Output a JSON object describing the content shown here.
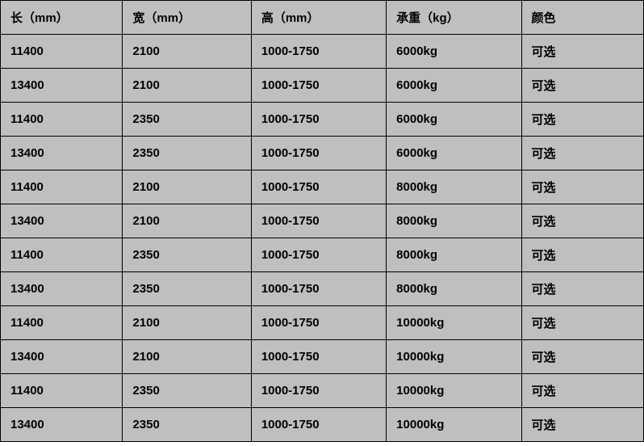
{
  "table": {
    "background_color": "#bfbfbf",
    "border_color": "#000000",
    "text_color": "#000000",
    "font_size": 15,
    "font_weight": "bold",
    "columns": [
      {
        "key": "length",
        "label": "长（mm）",
        "width_pct": 19
      },
      {
        "key": "width",
        "label": "宽（mm）",
        "width_pct": 20
      },
      {
        "key": "height",
        "label": "高（mm）",
        "width_pct": 21
      },
      {
        "key": "weight",
        "label": "承重（kg）",
        "width_pct": 21
      },
      {
        "key": "color",
        "label": "颜色",
        "width_pct": 19
      }
    ],
    "rows": [
      {
        "length": "11400",
        "width": "2100",
        "height": "1000-1750",
        "weight": "6000kg",
        "color": "可选"
      },
      {
        "length": "13400",
        "width": "2100",
        "height": "1000-1750",
        "weight": "6000kg",
        "color": "可选"
      },
      {
        "length": "11400",
        "width": "2350",
        "height": "1000-1750",
        "weight": "6000kg",
        "color": "可选"
      },
      {
        "length": "13400",
        "width": "2350",
        "height": "1000-1750",
        "weight": "6000kg",
        "color": "可选"
      },
      {
        "length": "11400",
        "width": "2100",
        "height": "1000-1750",
        "weight": "8000kg",
        "color": "可选"
      },
      {
        "length": "13400",
        "width": "2100",
        "height": "1000-1750",
        "weight": "8000kg",
        "color": "可选"
      },
      {
        "length": "11400",
        "width": "2350",
        "height": "1000-1750",
        "weight": "8000kg",
        "color": "可选"
      },
      {
        "length": "13400",
        "width": "2350",
        "height": "1000-1750",
        "weight": "8000kg",
        "color": "可选"
      },
      {
        "length": "11400",
        "width": "2100",
        "height": "1000-1750",
        "weight": "10000kg",
        "color": "可选"
      },
      {
        "length": "13400",
        "width": "2100",
        "height": "1000-1750",
        "weight": "10000kg",
        "color": "可选"
      },
      {
        "length": "11400",
        "width": "2350",
        "height": "1000-1750",
        "weight": "10000kg",
        "color": "可选"
      },
      {
        "length": "13400",
        "width": "2350",
        "height": "1000-1750",
        "weight": "10000kg",
        "color": "可选"
      }
    ]
  }
}
